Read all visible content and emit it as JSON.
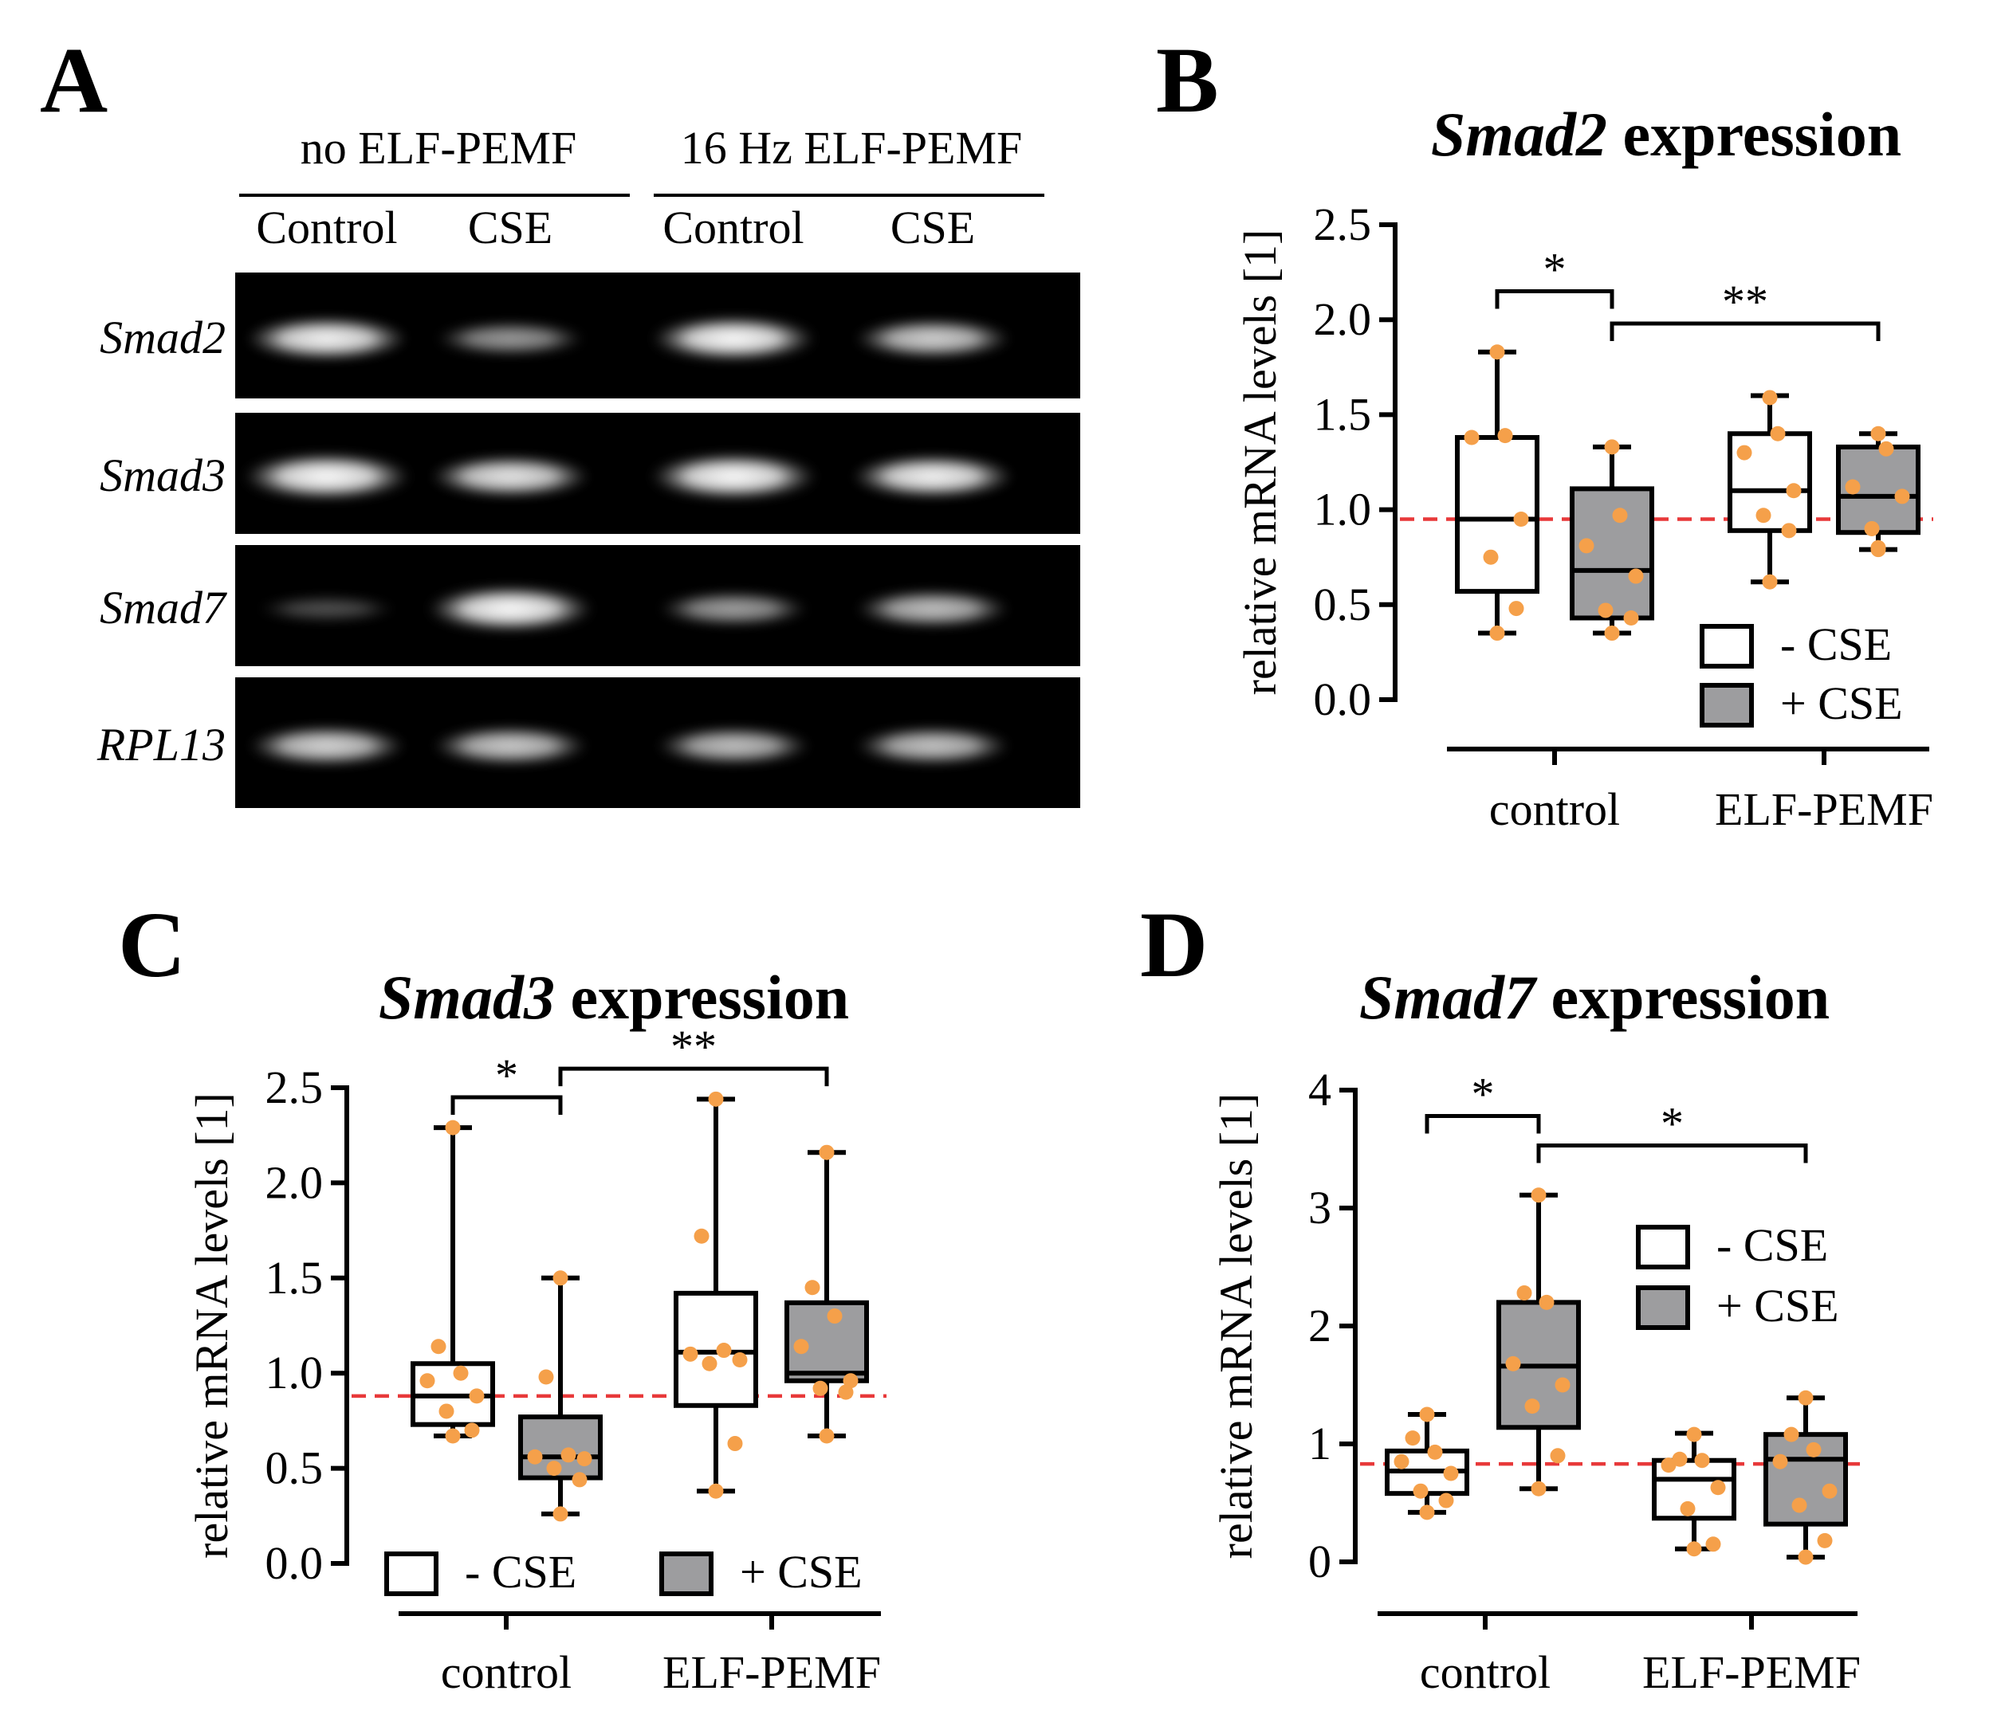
{
  "panel_a": {
    "letter": "A",
    "group_labels": [
      "no ELF-PEMF",
      "16 Hz ELF-PEMF"
    ],
    "lane_labels": [
      "Control",
      "CSE",
      "Control",
      "CSE"
    ],
    "genes": [
      {
        "name": "Smad2",
        "intensities": [
          0.85,
          0.42,
          0.9,
          0.68
        ]
      },
      {
        "name": "Smad3",
        "intensities": [
          1.0,
          0.78,
          0.98,
          0.85
        ]
      },
      {
        "name": "Smad7",
        "intensities": [
          0.08,
          0.95,
          0.45,
          0.6
        ]
      },
      {
        "name": "RPL13",
        "intensities": [
          0.7,
          0.65,
          0.6,
          0.62
        ]
      }
    ]
  },
  "colors": {
    "point": "#f5a04a",
    "reference_line": "#e8393a",
    "box_plus_cse": "#9d9d9f",
    "box_minus_cse": "#ffffff"
  },
  "chart_data": [
    {
      "letter": "B",
      "type": "box",
      "title_gene": "Smad2",
      "title_rest": " expression",
      "ylabel": "relative mRNA levels [1]",
      "ylim": [
        0,
        2.5
      ],
      "yticks": [
        "0.0",
        "0.5",
        "1.0",
        "1.5",
        "2.0",
        "2.5"
      ],
      "ytick_values": [
        0,
        0.5,
        1.0,
        1.5,
        2.0,
        2.5
      ],
      "reference_line": 0.95,
      "categories": [
        "control",
        "ELF-PEMF"
      ],
      "legend": {
        "placement": "bottom-right",
        "entries": [
          "- CSE",
          "+ CSE"
        ]
      },
      "boxes": [
        {
          "group": "control",
          "series": "- CSE",
          "min": 0.35,
          "q1": 0.57,
          "median": 0.95,
          "q3": 1.38,
          "max": 1.83,
          "points": [
            0.35,
            0.48,
            0.75,
            0.95,
            1.38,
            1.39,
            1.83
          ]
        },
        {
          "group": "control",
          "series": "+ CSE",
          "min": 0.35,
          "q1": 0.43,
          "median": 0.68,
          "q3": 1.11,
          "max": 1.33,
          "points": [
            0.35,
            0.43,
            0.47,
            0.65,
            0.81,
            0.97,
            1.33
          ]
        },
        {
          "group": "ELF-PEMF",
          "series": "- CSE",
          "min": 0.62,
          "q1": 0.89,
          "median": 1.1,
          "q3": 1.4,
          "max": 1.6,
          "points": [
            0.62,
            0.89,
            0.97,
            1.1,
            1.3,
            1.4,
            1.59
          ]
        },
        {
          "group": "ELF-PEMF",
          "series": "+ CSE",
          "min": 0.79,
          "q1": 0.88,
          "median": 1.07,
          "q3": 1.33,
          "max": 1.4,
          "points": [
            0.79,
            0.8,
            0.9,
            1.07,
            1.12,
            1.32,
            1.4
          ]
        }
      ],
      "significance": [
        {
          "label": "*",
          "from": 0,
          "to": 1,
          "y": 2.15
        },
        {
          "label": "**",
          "from": 1,
          "to": 3,
          "y": 1.98
        }
      ]
    },
    {
      "letter": "C",
      "type": "box",
      "title_gene": "Smad3",
      "title_rest": " expression",
      "ylabel": "relative mRNA levels [1]",
      "ylim": [
        0,
        2.5
      ],
      "yticks": [
        "0.0",
        "0.5",
        "1.0",
        "1.5",
        "2.0",
        "2.5"
      ],
      "ytick_values": [
        0,
        0.5,
        1.0,
        1.5,
        2.0,
        2.5
      ],
      "reference_line": 0.88,
      "categories": [
        "control",
        "ELF-PEMF"
      ],
      "legend": {
        "placement": "bottom",
        "entries": [
          "- CSE",
          "+ CSE"
        ]
      },
      "boxes": [
        {
          "group": "control",
          "series": "- CSE",
          "min": 0.67,
          "q1": 0.73,
          "median": 0.88,
          "q3": 1.05,
          "max": 2.29,
          "points": [
            0.67,
            0.7,
            0.8,
            0.88,
            0.96,
            1.0,
            1.14,
            2.29
          ]
        },
        {
          "group": "control",
          "series": "+ CSE",
          "min": 0.26,
          "q1": 0.45,
          "median": 0.56,
          "q3": 0.77,
          "max": 1.5,
          "points": [
            0.26,
            0.44,
            0.5,
            0.55,
            0.56,
            0.57,
            0.98,
            1.5
          ]
        },
        {
          "group": "ELF-PEMF",
          "series": "- CSE",
          "min": 0.38,
          "q1": 0.83,
          "median": 1.11,
          "q3": 1.42,
          "max": 2.44,
          "points": [
            0.38,
            0.63,
            1.05,
            1.07,
            1.1,
            1.12,
            1.72,
            2.44
          ]
        },
        {
          "group": "ELF-PEMF",
          "series": "+ CSE",
          "min": 0.67,
          "q1": 0.96,
          "median": 1.0,
          "q3": 1.37,
          "max": 2.16,
          "points": [
            0.67,
            0.9,
            0.92,
            0.96,
            1.14,
            1.3,
            1.45,
            2.16
          ]
        }
      ],
      "significance": [
        {
          "label": "*",
          "from": 0,
          "to": 1,
          "y": 2.45
        },
        {
          "label": "**",
          "from": 1,
          "to": 3,
          "y": 2.6
        }
      ]
    },
    {
      "letter": "D",
      "type": "box",
      "title_gene": "Smad7",
      "title_rest": " expression",
      "ylabel": "relative mRNA levels [1]",
      "ylim": [
        0,
        4
      ],
      "yticks": [
        "0",
        "1",
        "2",
        "3",
        "4"
      ],
      "ytick_values": [
        0,
        1,
        2,
        3,
        4
      ],
      "reference_line": 0.83,
      "categories": [
        "control",
        "ELF-PEMF"
      ],
      "legend": {
        "placement": "top-right",
        "entries": [
          "- CSE",
          "+ CSE"
        ]
      },
      "boxes": [
        {
          "group": "control",
          "series": "- CSE",
          "min": 0.42,
          "q1": 0.58,
          "median": 0.77,
          "q3": 0.94,
          "max": 1.25,
          "points": [
            0.42,
            0.52,
            0.6,
            0.75,
            0.85,
            0.93,
            1.05,
            1.25
          ]
        },
        {
          "group": "control",
          "series": "+ CSE",
          "min": 0.62,
          "q1": 1.14,
          "median": 1.66,
          "q3": 2.2,
          "max": 3.11,
          "points": [
            0.62,
            0.9,
            1.32,
            1.5,
            1.68,
            2.2,
            2.28,
            3.11
          ]
        },
        {
          "group": "ELF-PEMF",
          "series": "- CSE",
          "min": 0.11,
          "q1": 0.37,
          "median": 0.7,
          "q3": 0.86,
          "max": 1.09,
          "points": [
            0.11,
            0.15,
            0.45,
            0.63,
            0.82,
            0.86,
            0.87,
            1.08
          ]
        },
        {
          "group": "ELF-PEMF",
          "series": "+ CSE",
          "min": 0.04,
          "q1": 0.32,
          "median": 0.87,
          "q3": 1.08,
          "max": 1.39,
          "points": [
            0.04,
            0.18,
            0.48,
            0.6,
            0.85,
            0.95,
            1.08,
            1.39
          ]
        }
      ],
      "significance": [
        {
          "label": "*",
          "from": 0,
          "to": 1,
          "y": 3.78
        },
        {
          "label": "*",
          "from": 1,
          "to": 3,
          "y": 3.53
        }
      ]
    }
  ]
}
